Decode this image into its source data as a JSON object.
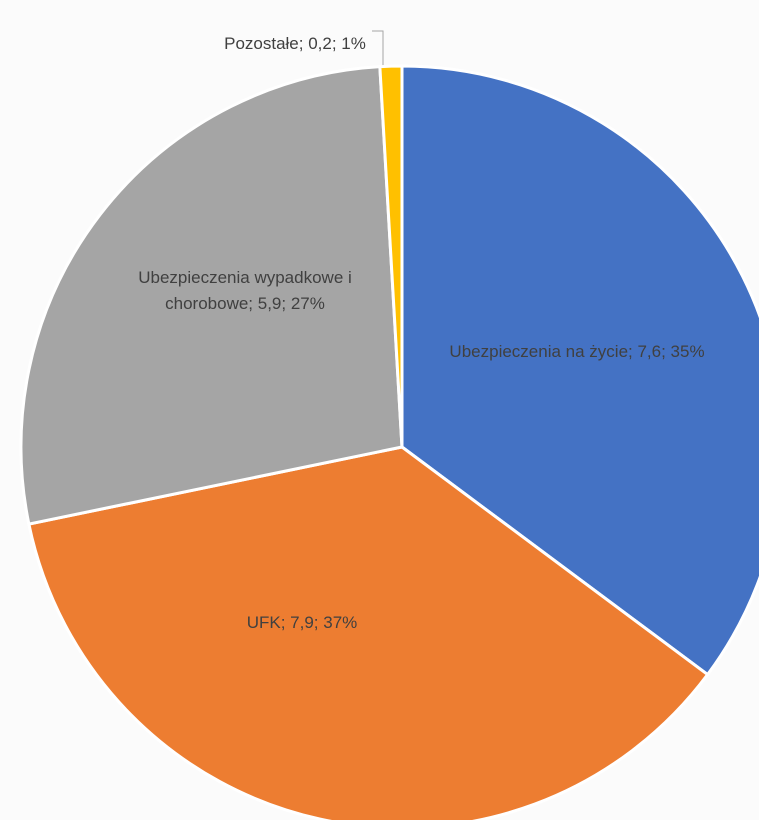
{
  "chart_data": {
    "type": "pie",
    "categories": [
      "Ubezpieczenia na życie",
      "UFK",
      "Ubezpieczenia wypadkowe i chorobowe",
      "Pozostałe"
    ],
    "values": [
      7.6,
      7.9,
      5.9,
      0.2
    ],
    "value_labels": [
      "Ubezpieczenia na życie; 7,6; 35%",
      "UFK; 7,9; 37%",
      "Ubezpieczenia wypadkowe i chorobowe; 5,9; 27%",
      "Pozostałe; 0,2; 1%"
    ],
    "colors": [
      "#4472c4",
      "#ed7d31",
      "#a5a5a5",
      "#ffc000"
    ]
  }
}
